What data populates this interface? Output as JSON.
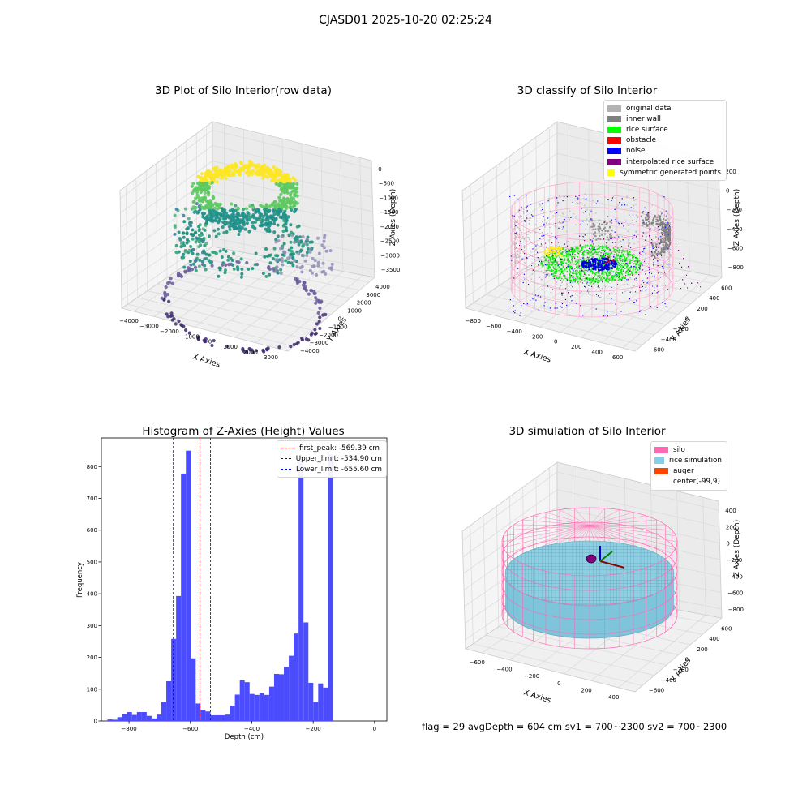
{
  "figure": {
    "suptitle": "CJASD01 2025-10-20 02:25:24"
  },
  "status_line": "flag = 29  avgDepth = 604 cm  sv1 = 700~2300  sv2 = 700~2300",
  "chart_data": [
    {
      "type": "scatter",
      "projection": "3d",
      "title": "3D Plot of Silo Interior(row data)",
      "xlabel": "X Axies",
      "ylabel": "Y Axies",
      "zlabel": "Z Axies (Depth)",
      "x_ticks": [
        "−4000",
        "−3000",
        "−2000",
        "−1000",
        "0",
        "1000",
        "2000",
        "3000"
      ],
      "y_ticks": [
        "−4000",
        "−3000",
        "−2000",
        "−1000",
        "0",
        "1000",
        "2000",
        "3000",
        "4000"
      ],
      "z_ticks": [
        "−3500",
        "−3000",
        "−2500",
        "−2000",
        "−1500",
        "−1000",
        "−500",
        "0"
      ],
      "xlim": [
        -4500,
        4000
      ],
      "ylim": [
        -4000,
        4000
      ],
      "zlim": [
        -3800,
        200
      ],
      "colormap": "viridis",
      "grid": true
    },
    {
      "type": "scatter",
      "projection": "3d",
      "title": "3D classify of Silo Interior",
      "xlabel": "X Axies",
      "ylabel": "Y Axies",
      "zlabel": "Z Axies (Depth)",
      "x_ticks": [
        "−800",
        "−600",
        "−400",
        "−200",
        "0",
        "200",
        "400",
        "600"
      ],
      "y_ticks": [
        "−600",
        "−400",
        "−200",
        "0",
        "200",
        "400",
        "600"
      ],
      "z_ticks": [
        "−800",
        "−600",
        "−400",
        "−200",
        "0",
        "200"
      ],
      "xlim": [
        -850,
        650
      ],
      "ylim": [
        -650,
        650
      ],
      "zlim": [
        -900,
        250
      ],
      "legend": {
        "position": "top-right",
        "entries": [
          {
            "label": "original data",
            "color": "#b3b3b3"
          },
          {
            "label": "inner wall",
            "color": "#808080"
          },
          {
            "label": "rice surface",
            "color": "#00ff00"
          },
          {
            "label": "obstacle",
            "color": "#ff0000"
          },
          {
            "label": "noise",
            "color": "#0000ff"
          },
          {
            "label": "interpolated rice surface",
            "color": "#800080"
          },
          {
            "label": "symmetric generated points",
            "color": "#ffff00"
          }
        ]
      },
      "silo_wireframe_color": "#ff9ec8",
      "grid": true
    },
    {
      "type": "bar",
      "subtype": "histogram",
      "title": "Histogram of Z-Axies (Height) Values",
      "xlabel": "Depth (cm)",
      "ylabel": "Frequency",
      "bar_color": "#4c4cff",
      "xlim": [
        -890,
        40
      ],
      "ylim": [
        0,
        890
      ],
      "x_ticks": [
        -800,
        -600,
        -400,
        -200,
        0
      ],
      "y_ticks": [
        0,
        100,
        200,
        300,
        400,
        500,
        600,
        700,
        800
      ],
      "bin_start": -870,
      "bin_width": 15.96,
      "values": [
        5,
        4,
        12,
        22,
        28,
        19,
        28,
        28,
        16,
        8,
        20,
        60,
        125,
        258,
        393,
        778,
        850,
        197,
        55,
        35,
        30,
        18,
        18,
        18,
        20,
        48,
        83,
        128,
        122,
        85,
        82,
        88,
        82,
        108,
        148,
        147,
        170,
        205,
        275,
        815,
        310,
        120,
        60,
        118,
        105,
        838
      ],
      "vlines": [
        {
          "label": "first_peak: -569.39 cm",
          "x": -569.39,
          "color": "#ff0000"
        },
        {
          "label": "Upper_limit: -534.90 cm",
          "x": -534.9,
          "color": "#0000cc"
        },
        {
          "label": "Lower_limit: -655.60 cm",
          "x": -655.6,
          "color": "#0000cc"
        }
      ],
      "legend": {
        "position": "top-right"
      },
      "grid": false
    },
    {
      "type": "area",
      "projection": "3d",
      "title": "3D simulation of Silo Interior",
      "xlabel": "X Axies",
      "ylabel": "Y Axies",
      "zlabel": "Z Axies (Depth)",
      "x_ticks": [
        "−600",
        "−400",
        "−200",
        "0",
        "200",
        "400"
      ],
      "y_ticks": [
        "−600",
        "−400",
        "−200",
        "0",
        "200",
        "400",
        "600"
      ],
      "z_ticks": [
        "−800",
        "−600",
        "−400",
        "−200",
        "0",
        "200",
        "400"
      ],
      "legend": {
        "position": "top-right",
        "entries": [
          {
            "label": "silo",
            "color": "#ff69b4"
          },
          {
            "label": "rice simulation",
            "color": "#87ceeb"
          },
          {
            "label": "auger",
            "color": "#ff4500"
          },
          {
            "label": "center(-99,9)",
            "color": "#ffffff"
          }
        ]
      },
      "grid": true
    }
  ]
}
